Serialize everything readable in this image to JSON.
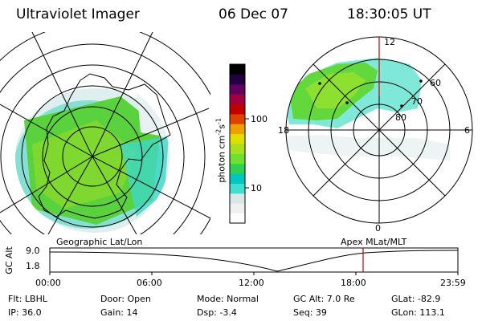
{
  "header": {
    "title": "Ultraviolet Imager",
    "date": "06 Dec 07",
    "time": "18:30:05 UT"
  },
  "geo_map": {
    "label": "Geographic Lat/Lon"
  },
  "mag_map": {
    "label": "Apex  MLat/MLT",
    "lat_labels": [
      "80",
      "70",
      "60"
    ],
    "mlt_labels": {
      "top": "12",
      "bottom": "0",
      "left": "18",
      "right": "6"
    }
  },
  "colorbar": {
    "unit_main": "photon cm",
    "unit_sup1": "-2",
    "unit_s": "s",
    "unit_sup2": "-1",
    "tick_100": "100",
    "tick_10": "10",
    "colors": [
      "#ffffff",
      "#f0f0f0",
      "#d8e8e8",
      "#40e0d0",
      "#00c8c0",
      "#30d050",
      "#70e030",
      "#a8e020",
      "#e0e000",
      "#f0a000",
      "#e04000",
      "#c00000",
      "#a00040",
      "#600060",
      "#200040",
      "#000000"
    ]
  },
  "altitude_plot": {
    "ylabel": "GC Alt",
    "y_ticks": [
      "9.0",
      "1.8"
    ],
    "x_ticks": [
      "00:00",
      "06:00",
      "12:00",
      "18:00",
      "23:59"
    ],
    "current_time_color": "#d00000"
  },
  "info": {
    "flt": "Flt: LBHL",
    "ip": "IP: 36.0",
    "door": "Door: Open",
    "gain": "Gain: 14",
    "mode": "Mode: Normal",
    "dsp": "Dsp:    -3.4",
    "gcalt": "GC Alt: 7.0 Re",
    "seq": "Seq: 39",
    "glat": "GLat: -82.9",
    "glon": "GLon: 113.1"
  }
}
